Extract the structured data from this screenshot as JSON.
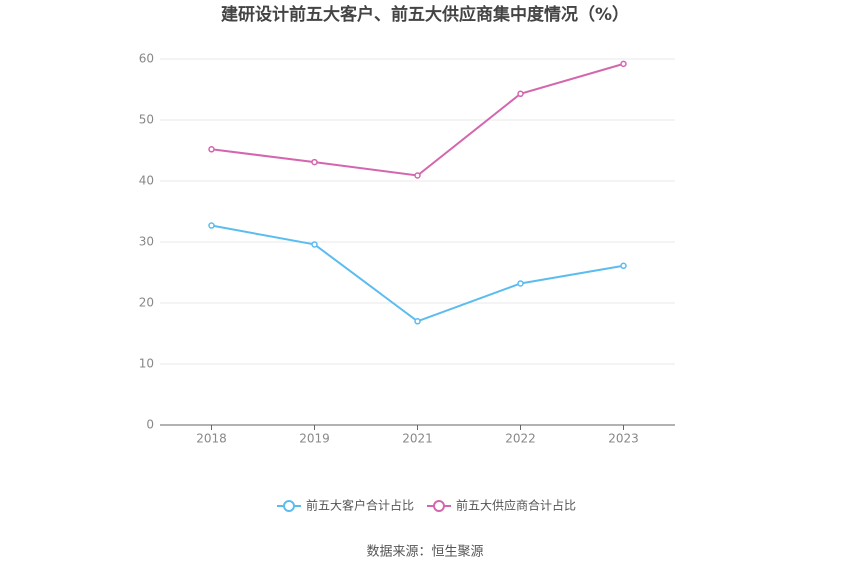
{
  "chart_data": {
    "type": "line",
    "title": "建研设计前五大客户、前五大供应商集中度情况（%）",
    "categories": [
      "2018",
      "2019",
      "2021",
      "2022",
      "2023"
    ],
    "series": [
      {
        "name": "前五大客户合计占比",
        "color": "#5bbcf0",
        "values": [
          32.7,
          29.6,
          17.0,
          23.2,
          26.1
        ]
      },
      {
        "name": "前五大供应商合计占比",
        "color": "#d466ae",
        "values": [
          45.2,
          43.1,
          40.9,
          54.3,
          59.2
        ]
      }
    ],
    "ylim": [
      0,
      60
    ],
    "yticks": [
      0,
      10,
      20,
      30,
      40,
      50,
      60
    ],
    "grid": true,
    "legend": "bottom",
    "source": "数据来源：恒生聚源"
  }
}
